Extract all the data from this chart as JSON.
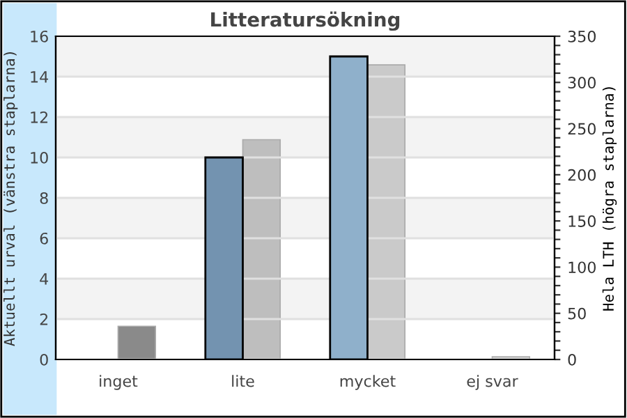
{
  "chart_data": {
    "type": "bar",
    "title": "Litteratursökning",
    "ylabel": "Aktuellt urval (vänstra staplarna)",
    "y2label": "Hela LTH (högra staplarna)",
    "categories": [
      "inget",
      "lite",
      "mycket",
      "ej svar"
    ],
    "series": [
      {
        "colors": [
          "#7393b0",
          "#7393b0",
          "#8fb0cb",
          "#8fb0cb"
        ],
        "values": [
          null,
          10,
          15,
          null
        ]
      },
      {
        "colors": [
          "#8a8a8a",
          "#bebebe",
          "#cacaca",
          "#cccccc"
        ],
        "values": [
          36,
          238,
          319,
          3
        ],
        "axis": "y2"
      }
    ],
    "ylim": [
      0,
      16
    ],
    "yticks": [
      0,
      2,
      4,
      6,
      8,
      10,
      12,
      14,
      16
    ],
    "y2lim": [
      0,
      350
    ],
    "y2ticks": [
      0,
      {
        "value": 10,
        "label": null
      },
      {
        "value": 20,
        "label": null
      },
      {
        "value": 30,
        "label": null
      },
      {
        "value": 40,
        "label": null
      },
      50,
      {
        "value": 60,
        "label": null
      },
      {
        "value": 70,
        "label": null
      },
      {
        "value": 80,
        "label": null
      },
      {
        "value": 90,
        "label": null
      },
      100,
      {
        "value": 110,
        "label": null
      },
      {
        "value": 120,
        "label": null
      },
      {
        "value": 130,
        "label": null
      },
      {
        "value": 140,
        "label": null
      },
      150,
      {
        "value": 160,
        "label": null
      },
      {
        "value": 170,
        "label": null
      },
      {
        "value": 180,
        "label": null
      },
      {
        "value": 190,
        "label": null
      },
      200,
      {
        "value": 210,
        "label": null
      },
      {
        "value": 220,
        "label": null
      },
      {
        "value": 230,
        "label": null
      },
      {
        "value": 240,
        "label": null
      },
      250,
      {
        "value": 260,
        "label": null
      },
      {
        "value": 270,
        "label": null
      },
      {
        "value": 280,
        "label": null
      },
      {
        "value": 290,
        "label": null
      },
      300,
      {
        "value": 310,
        "label": null
      },
      {
        "value": 320,
        "label": null
      },
      {
        "value": 330,
        "label": null
      },
      {
        "value": 340,
        "label": null
      },
      350
    ],
    "grid": "y",
    "legend": false
  }
}
